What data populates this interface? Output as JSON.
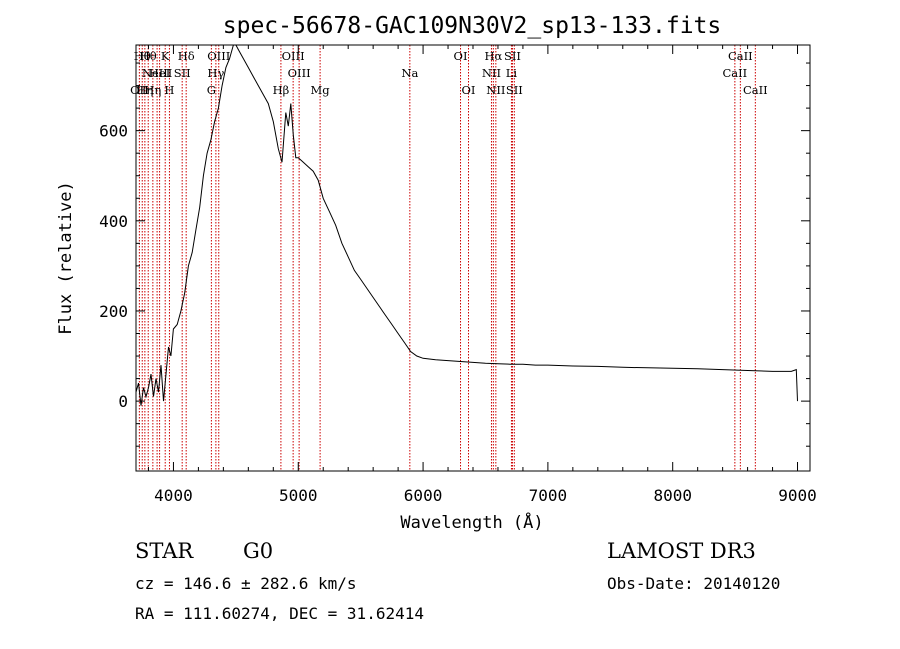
{
  "chart_data": {
    "type": "line",
    "title": "spec-56678-GAC109N30V2_sp13-133.fits",
    "xlabel": "Wavelength (Å)",
    "ylabel": "Flux (relative)",
    "xlim": [
      3700,
      9100
    ],
    "ylim": [
      -155,
      790
    ],
    "x_ticks": [
      4000,
      5000,
      6000,
      7000,
      8000,
      9000
    ],
    "y_ticks": [
      0,
      200,
      400,
      600
    ],
    "x_tick_labels": [
      "4000",
      "5000",
      "6000",
      "7000",
      "8000",
      "9000"
    ],
    "y_tick_labels": [
      "0",
      "200",
      "400",
      "600"
    ],
    "series": [
      {
        "name": "spectrum",
        "x": [
          3700,
          3720,
          3740,
          3760,
          3780,
          3800,
          3820,
          3840,
          3860,
          3880,
          3900,
          3920,
          3940,
          3960,
          3980,
          4000,
          4030,
          4060,
          4090,
          4120,
          4150,
          4180,
          4210,
          4240,
          4270,
          4300,
          4330,
          4360,
          4390,
          4420,
          4450,
          4480,
          4500,
          4520,
          4560,
          4600,
          4640,
          4680,
          4720,
          4760,
          4800,
          4840,
          4870,
          4900,
          4920,
          4940,
          4960,
          4980,
          5000,
          5040,
          5080,
          5120,
          5160,
          5200,
          5250,
          5300,
          5350,
          5400,
          5450,
          5500,
          5550,
          5600,
          5650,
          5700,
          5750,
          5800,
          5850,
          5900,
          5950,
          6000,
          6100,
          6200,
          6300,
          6400,
          6500,
          6600,
          6700,
          6800,
          6900,
          7000,
          7200,
          7400,
          7600,
          7800,
          8000,
          8200,
          8400,
          8600,
          8800,
          8950,
          8990,
          9000
        ],
        "y": [
          20,
          40,
          -10,
          30,
          10,
          30,
          60,
          10,
          50,
          20,
          80,
          0,
          60,
          120,
          100,
          160,
          170,
          200,
          240,
          300,
          330,
          380,
          430,
          500,
          550,
          580,
          620,
          650,
          700,
          740,
          760,
          790,
          790,
          780,
          760,
          740,
          720,
          700,
          680,
          660,
          620,
          560,
          530,
          640,
          610,
          660,
          590,
          540,
          540,
          530,
          520,
          510,
          490,
          450,
          420,
          390,
          350,
          320,
          290,
          270,
          250,
          230,
          210,
          190,
          170,
          150,
          130,
          110,
          100,
          95,
          92,
          90,
          88,
          86,
          84,
          83,
          82,
          82,
          80,
          80,
          78,
          77,
          75,
          74,
          73,
          72,
          70,
          68,
          66,
          66,
          70,
          0
        ]
      }
    ],
    "lines": [
      {
        "wave": 3727,
        "label": "OII",
        "row": 3
      },
      {
        "wave": 3750,
        "label": "Hθ",
        "row": 1
      },
      {
        "wave": 3771,
        "label": "Hη",
        "row": 3
      },
      {
        "wave": 3798,
        "label": "Hθ",
        "row": 1
      },
      {
        "wave": 3835,
        "label": "Hη",
        "row": 3
      },
      {
        "wave": 3869,
        "label": "NeIII",
        "row": 2
      },
      {
        "wave": 3889,
        "label": "HeI",
        "row": 2
      },
      {
        "wave": 3934,
        "label": "K",
        "row": 1
      },
      {
        "wave": 3968,
        "label": "H",
        "row": 3
      },
      {
        "wave": 4070,
        "label": "SII",
        "row": 2
      },
      {
        "wave": 4102,
        "label": "Hδ",
        "row": 1
      },
      {
        "wave": 4304,
        "label": "G",
        "row": 3
      },
      {
        "wave": 4340,
        "label": "Hγ",
        "row": 2
      },
      {
        "wave": 4363,
        "label": "OIII",
        "row": 1
      },
      {
        "wave": 4861,
        "label": "Hβ",
        "row": 3
      },
      {
        "wave": 4959,
        "label": "OIII",
        "row": 1
      },
      {
        "wave": 5007,
        "label": "OIII",
        "row": 2
      },
      {
        "wave": 5175,
        "label": "Mg",
        "row": 3
      },
      {
        "wave": 5894,
        "label": "Na",
        "row": 2
      },
      {
        "wave": 6300,
        "label": "OI",
        "row": 1
      },
      {
        "wave": 6364,
        "label": "OI",
        "row": 3
      },
      {
        "wave": 6548,
        "label": "NII",
        "row": 2
      },
      {
        "wave": 6563,
        "label": "Hα",
        "row": 1
      },
      {
        "wave": 6583,
        "label": "NII",
        "row": 3
      },
      {
        "wave": 6708,
        "label": "Li",
        "row": 2
      },
      {
        "wave": 6716,
        "label": "SII",
        "row": 1
      },
      {
        "wave": 6731,
        "label": "SII",
        "row": 3
      },
      {
        "wave": 8498,
        "label": "CaII",
        "row": 2
      },
      {
        "wave": 8542,
        "label": "CaII",
        "row": 1
      },
      {
        "wave": 8662,
        "label": "CaII",
        "row": 3
      }
    ],
    "colors": {
      "spectrum": "#000000",
      "lines": "#cc0000",
      "axes": "#000000"
    }
  },
  "info": {
    "class": "STAR",
    "subclass": "G0",
    "survey": "LAMOST DR3",
    "cz": "cz = 146.6 ± 282.6 km/s",
    "obs_date": "Obs-Date: 20140120",
    "radec": "RA = 111.60274, DEC =  31.62414"
  }
}
